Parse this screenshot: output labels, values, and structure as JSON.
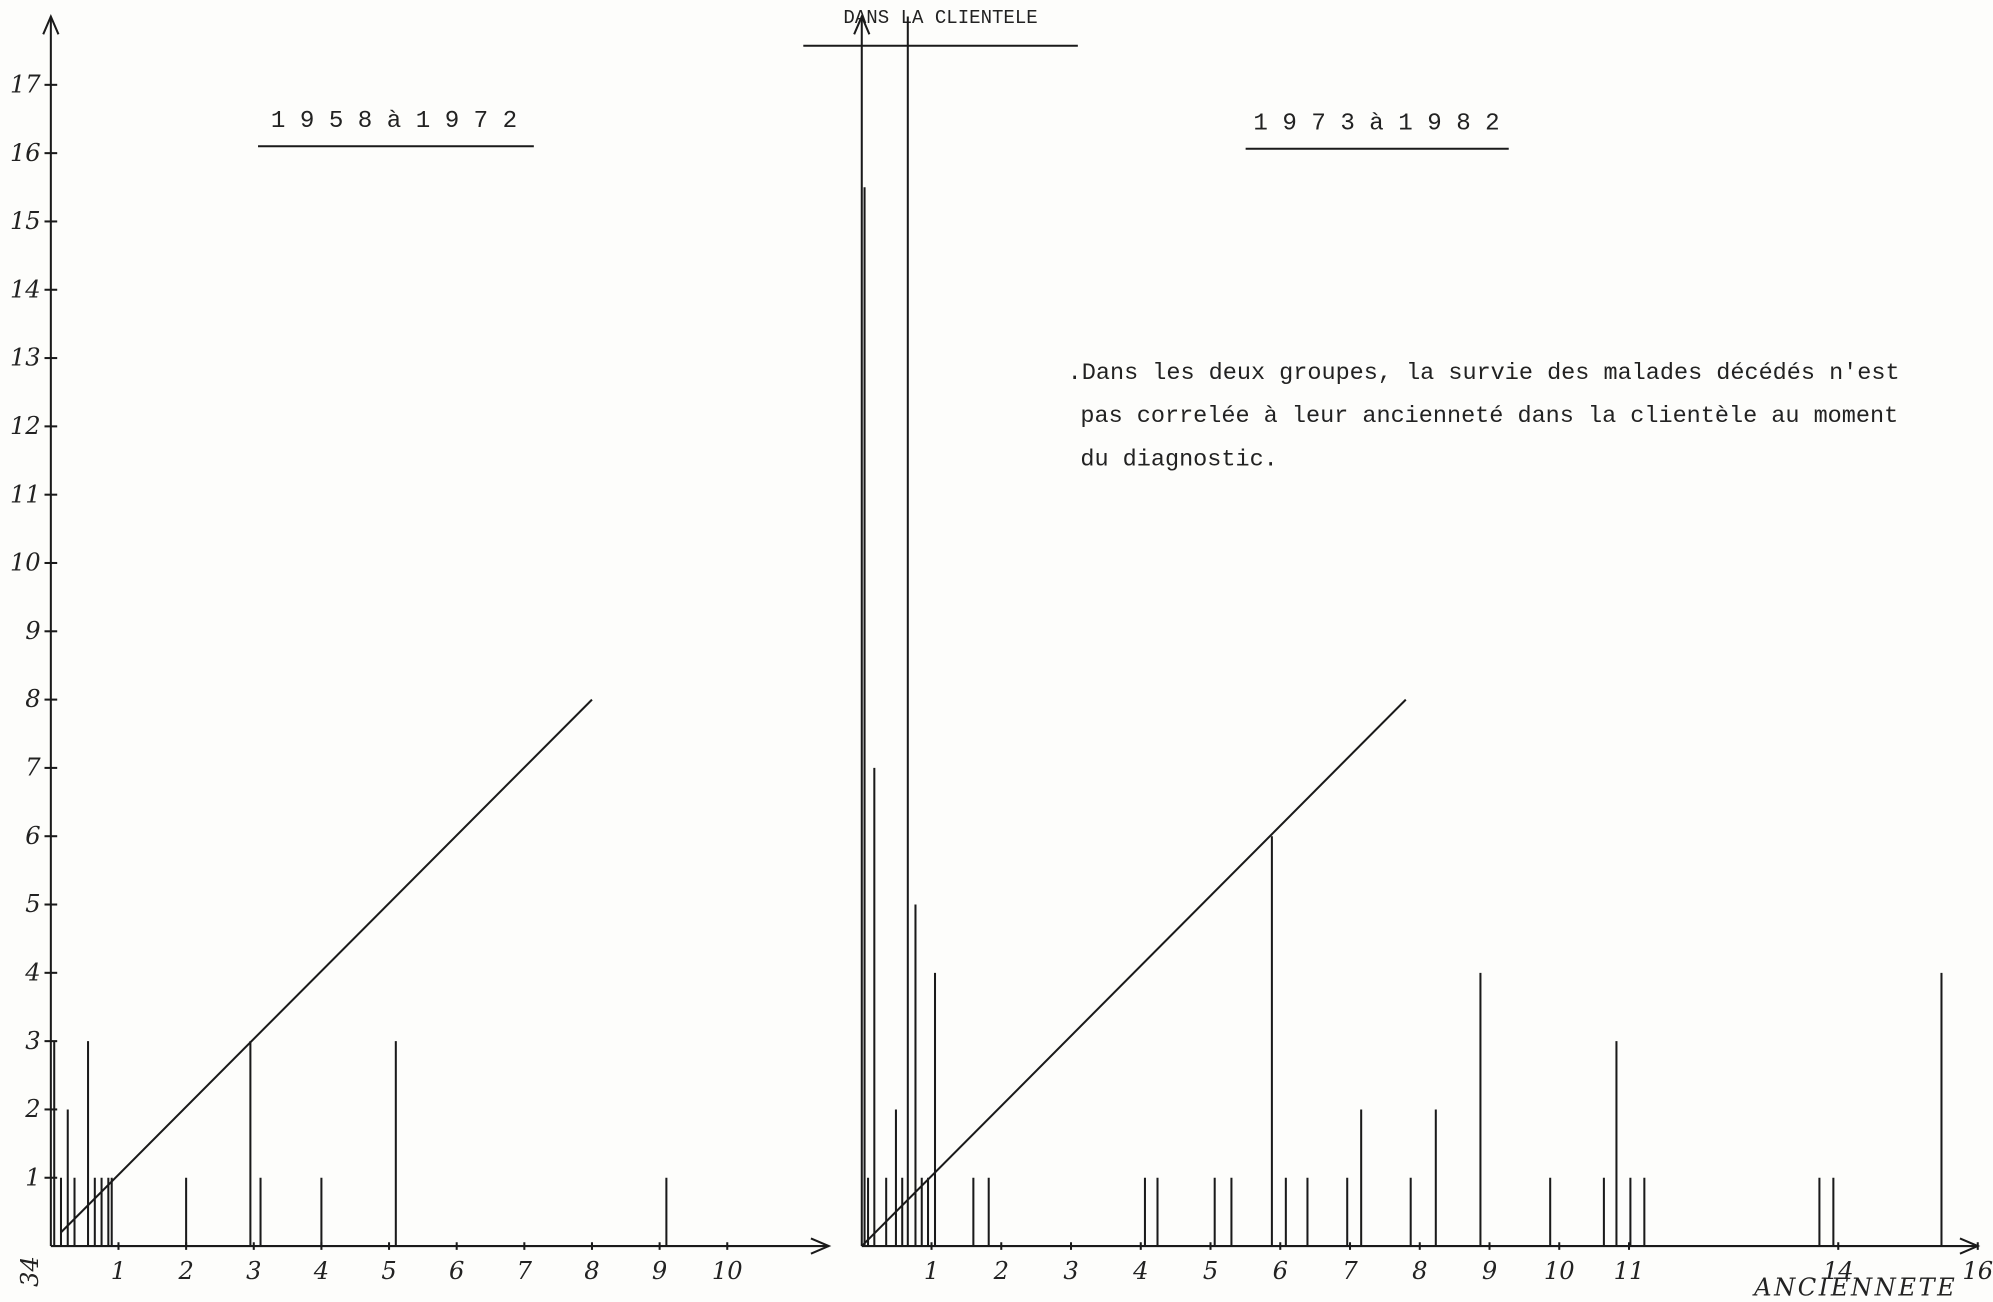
{
  "header": "DANS LA CLIENTELE",
  "note": [
    ".Dans les deux groupes, la survie des malades décédés n'est",
    "pas correlée à leur ancienneté dans la clientèle au moment",
    "du diagnostic."
  ],
  "corner_label": "34",
  "chart_data": [
    {
      "type": "bar",
      "title": "1 9 5 8 à 1 9 7 2",
      "x": [
        0.05,
        0.15,
        0.25,
        0.35,
        0.55,
        0.65,
        0.75,
        0.85,
        0.9,
        2,
        2.95,
        3.1,
        4,
        5.1,
        9.1
      ],
      "values": [
        3,
        1,
        2,
        1,
        3,
        1,
        1,
        1,
        1,
        1,
        3,
        1,
        1,
        3,
        1
      ],
      "xlim": [
        0,
        11.5
      ],
      "ylim": [
        0,
        18
      ],
      "xticks": [
        1,
        2,
        3,
        4,
        5,
        6,
        7,
        8,
        9,
        10
      ],
      "yticks": [
        1,
        2,
        3,
        4,
        5,
        6,
        7,
        8,
        9,
        10,
        11,
        12,
        13,
        14,
        15,
        16,
        17
      ],
      "trend": {
        "x": [
          0.15,
          8
        ],
        "y": [
          0.2,
          8
        ]
      }
    },
    {
      "type": "bar",
      "title": "1 9 7 3 à 1 9 8 2",
      "x": [
        0.04,
        0.09,
        0.18,
        0.35,
        0.49,
        0.58,
        0.66,
        0.77,
        0.86,
        0.95,
        1.05,
        1.6,
        1.82,
        4.06,
        4.24,
        5.06,
        5.3,
        5.88,
        6.08,
        6.39,
        6.96,
        7.16,
        7.87,
        8.23,
        8.87,
        9.87,
        10.64,
        10.82,
        11.02,
        11.22,
        13.73,
        13.93,
        15.48
      ],
      "values": [
        15.5,
        1,
        7,
        1,
        2,
        1,
        18,
        5,
        1,
        1,
        4,
        1,
        1,
        1,
        1,
        1,
        1,
        6,
        1,
        1,
        1,
        2,
        1,
        2,
        4,
        1,
        1,
        3,
        1,
        1,
        1,
        1,
        4
      ],
      "xlim": [
        0,
        16
      ],
      "ylim": [
        0,
        18
      ],
      "xticks": [
        1,
        2,
        3,
        4,
        5,
        6,
        7,
        8,
        9,
        10,
        11,
        14,
        16
      ],
      "x_label": "ANCIENNETE",
      "trend": {
        "x": [
          0,
          7.8
        ],
        "y": [
          0,
          8
        ]
      }
    }
  ]
}
